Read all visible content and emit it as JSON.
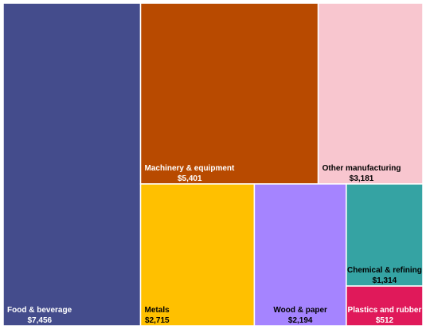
{
  "chart_data": {
    "type": "treemap",
    "title": "",
    "items": [
      {
        "label": "Food & beverage",
        "value": 7456,
        "value_label": "$7,456",
        "color": "#444C8C",
        "text_color": "#ffffff"
      },
      {
        "label": "Machinery & equipment",
        "value": 5401,
        "value_label": "$5,401",
        "color": "#B84A00",
        "text_color": "#ffffff"
      },
      {
        "label": "Other manufacturing",
        "value": 3181,
        "value_label": "$3,181",
        "color": "#F8C6CF",
        "text_color": "#000000"
      },
      {
        "label": "Metals",
        "value": 2715,
        "value_label": "$2,715",
        "color": "#FFC000",
        "text_color": "#000000"
      },
      {
        "label": "Wood & paper",
        "value": 2194,
        "value_label": "$2,194",
        "color": "#A584FF",
        "text_color": "#000000"
      },
      {
        "label": "Chemical & refining",
        "value": 1314,
        "value_label": "$1,314",
        "color": "#35A3A3",
        "text_color": "#000000"
      },
      {
        "label": "Plastics and rubber",
        "value": 512,
        "value_label": "$512",
        "color": "#E0195A",
        "text_color": "#ffffff"
      }
    ]
  }
}
